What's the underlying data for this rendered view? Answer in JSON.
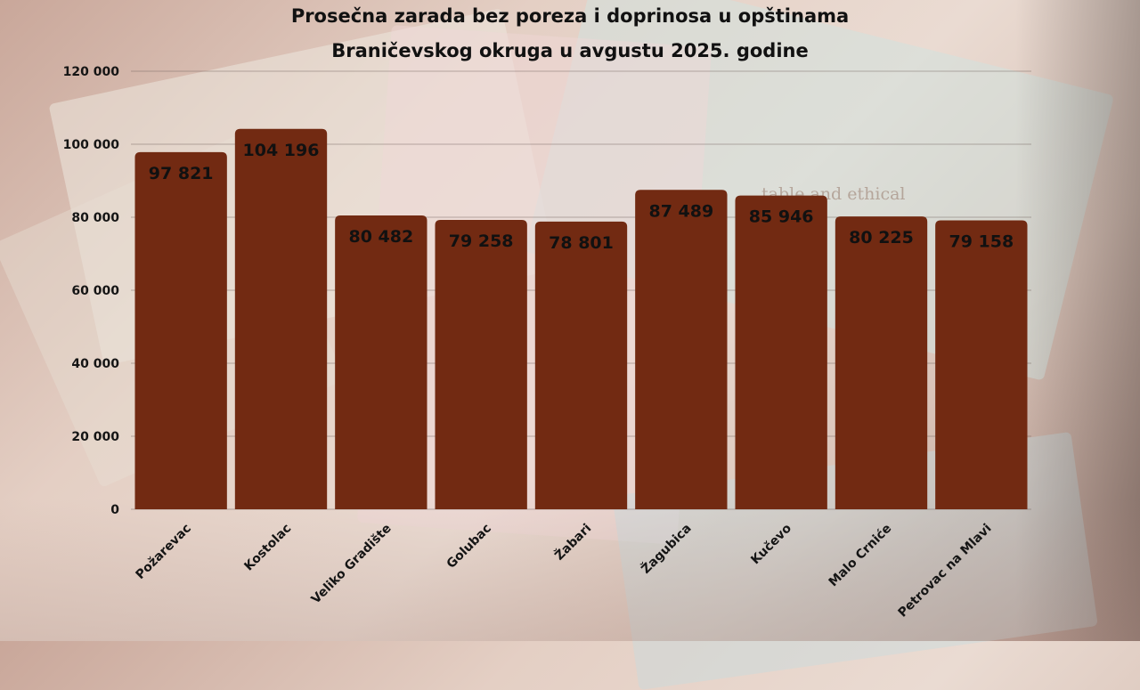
{
  "chart_data": {
    "type": "bar",
    "title_lines": [
      "Prosečna zarada bez poreza i doprinosa u opštinama",
      "Braničevskog okruga u avgustu 2025. godine"
    ],
    "categories": [
      "Požarevac",
      "Kostolac",
      "Veliko Gradište",
      "Golubac",
      "Žabari",
      "Žagubica",
      "Kučevo",
      "Malo Crniće",
      "Petrovac na Mlavi"
    ],
    "values": [
      97821,
      104196,
      80482,
      79258,
      78801,
      87489,
      85946,
      80225,
      79158
    ],
    "value_labels": [
      "97 821",
      "104 196",
      "80 482",
      "79 258",
      "78 801",
      "87 489",
      "85 946",
      "80 225",
      "79 158"
    ],
    "ylim": [
      0,
      120000
    ],
    "yticks": [
      0,
      20000,
      40000,
      60000,
      80000,
      100000,
      120000
    ],
    "ytick_labels": [
      "0",
      "20 000",
      "40 000",
      "60 000",
      "80 000",
      "100 000",
      "120 000"
    ],
    "grid": true,
    "bar_color": "#722a12",
    "xlabel": "",
    "ylabel": ""
  },
  "background": {
    "watermark": "table and ethical"
  }
}
